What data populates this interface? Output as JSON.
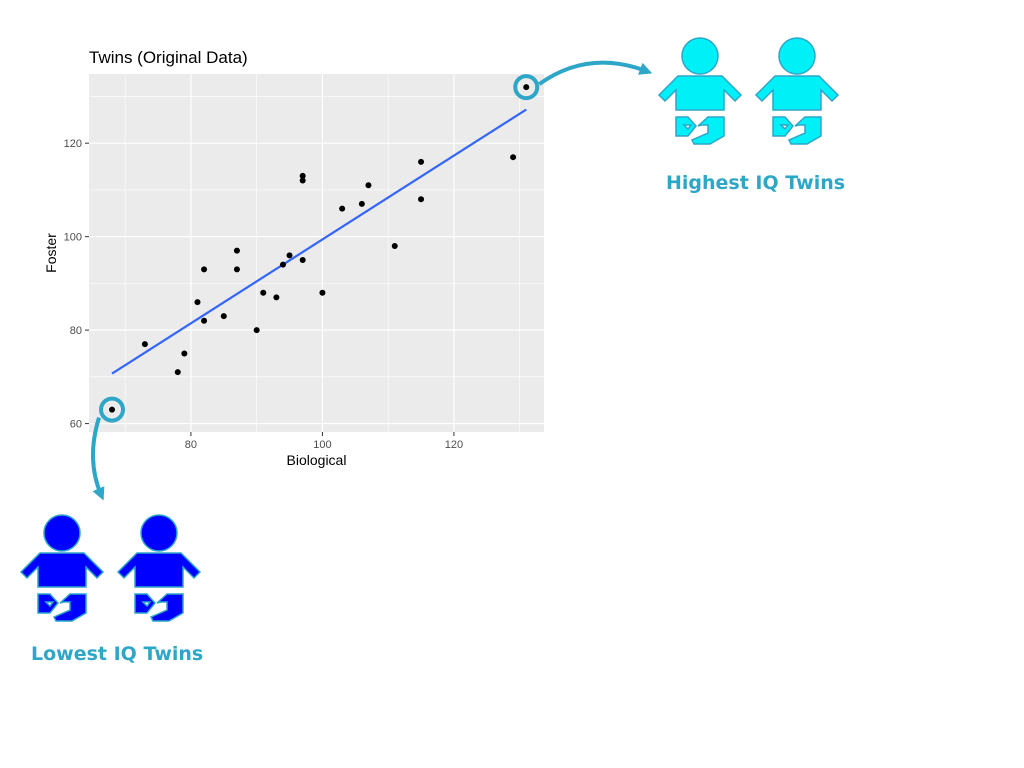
{
  "chart_data": {
    "type": "scatter",
    "title": "Twins (Original Data)",
    "xlabel": "Biological",
    "ylabel": "Foster",
    "xlim": [
      64.5,
      133.7
    ],
    "ylim": [
      58.2,
      134.8
    ],
    "x_ticks": [
      80,
      100,
      120
    ],
    "y_ticks": [
      60,
      80,
      100,
      120
    ],
    "grid": true,
    "points": [
      {
        "x": 68,
        "y": 63
      },
      {
        "x": 73,
        "y": 77
      },
      {
        "x": 78,
        "y": 71
      },
      {
        "x": 79,
        "y": 75
      },
      {
        "x": 81,
        "y": 86
      },
      {
        "x": 82,
        "y": 82
      },
      {
        "x": 82,
        "y": 93
      },
      {
        "x": 85,
        "y": 83
      },
      {
        "x": 87,
        "y": 93
      },
      {
        "x": 87,
        "y": 97
      },
      {
        "x": 90,
        "y": 80
      },
      {
        "x": 91,
        "y": 88
      },
      {
        "x": 93,
        "y": 87
      },
      {
        "x": 94,
        "y": 94
      },
      {
        "x": 95,
        "y": 96
      },
      {
        "x": 97,
        "y": 95
      },
      {
        "x": 97,
        "y": 112
      },
      {
        "x": 97,
        "y": 113
      },
      {
        "x": 100,
        "y": 88
      },
      {
        "x": 103,
        "y": 106
      },
      {
        "x": 106,
        "y": 107
      },
      {
        "x": 107,
        "y": 111
      },
      {
        "x": 111,
        "y": 98
      },
      {
        "x": 115,
        "y": 108
      },
      {
        "x": 115,
        "y": 116
      },
      {
        "x": 129,
        "y": 117
      },
      {
        "x": 131,
        "y": 132
      }
    ],
    "fit_line": {
      "x": [
        68,
        131
      ],
      "y": [
        70.7,
        127.2
      ],
      "color": "#3366ff"
    },
    "highlighted_points": [
      {
        "x": 131,
        "y": 132,
        "label": "Highest IQ Twins"
      },
      {
        "x": 68,
        "y": 63,
        "label": "Lowest IQ Twins"
      }
    ]
  },
  "callouts": {
    "high_label": "Highest IQ Twins",
    "low_label": "Lowest IQ Twins"
  },
  "colors": {
    "panel_bg": "#ebebeb",
    "grid": "#ffffff",
    "callout": "#2ea6c8",
    "twin_high": "#00f0f8",
    "twin_low": "#0000ff"
  },
  "icons": {
    "high": "baby-twins-icon",
    "low": "baby-twins-icon"
  }
}
